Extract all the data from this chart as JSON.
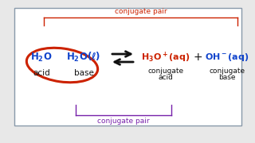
{
  "bg_color": "#e8e8e8",
  "box_facecolor": "#f5f5f2",
  "box_edgecolor": "#8899aa",
  "red_color": "#cc2200",
  "blue_color": "#1144cc",
  "purple_color": "#7722aa",
  "black_color": "#111111",
  "conj_pair_top": "conjugate pair",
  "conj_pair_bot": "conjugate pair",
  "left1_label": "acid",
  "left2_label": "base",
  "right1_sub1": "conjugate",
  "right1_sub2": "acid",
  "right2_sub1": "conjugate",
  "right2_sub2": "base",
  "plus_sign": "+"
}
